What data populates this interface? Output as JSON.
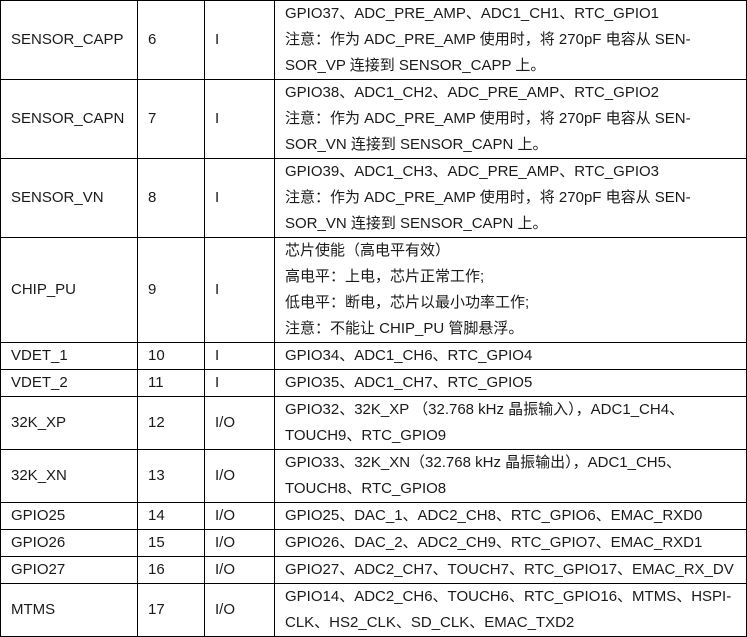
{
  "rows": [
    {
      "name": "SENSOR_CAPP",
      "no": "6",
      "type": "I",
      "desc": [
        "GPIO37、ADC_PRE_AMP、ADC1_CH1、RTC_GPIO1",
        "注意：作为 ADC_PRE_AMP 使用时，将 270pF 电容从 SEN-",
        "SOR_VP 连接到 SENSOR_CAPP 上。"
      ]
    },
    {
      "name": "SENSOR_CAPN",
      "no": "7",
      "type": "I",
      "desc": [
        "GPIO38、ADC1_CH2、ADC_PRE_AMP、RTC_GPIO2",
        "注意：作为 ADC_PRE_AMP 使用时，将 270pF 电容从 SEN-",
        "SOR_VN 连接到 SENSOR_CAPN 上。"
      ]
    },
    {
      "name": "SENSOR_VN",
      "no": "8",
      "type": "I",
      "desc": [
        "GPIO39、ADC1_CH3、ADC_PRE_AMP、RTC_GPIO3",
        "注意：作为 ADC_PRE_AMP 使用时，将 270pF 电容从 SEN-",
        "SOR_VN 连接到 SENSOR_CAPN 上。"
      ]
    },
    {
      "name": "CHIP_PU",
      "no": "9",
      "type": "I",
      "desc": [
        "芯片使能（高电平有效）",
        "高电平：上电，芯片正常工作;",
        "低电平：断电，芯片以最小功率工作;",
        "注意：不能让 CHIP_PU 管脚悬浮。"
      ]
    },
    {
      "name": "VDET_1",
      "no": "10",
      "type": "I",
      "desc": [
        "GPIO34、ADC1_CH6、RTC_GPIO4"
      ]
    },
    {
      "name": "VDET_2",
      "no": "11",
      "type": "I",
      "desc": [
        "GPIO35、ADC1_CH7、RTC_GPIO5"
      ]
    },
    {
      "name": "32K_XP",
      "no": "12",
      "type": "I/O",
      "desc": [
        "GPIO32、32K_XP （32.768 kHz 晶振输入），ADC1_CH4、",
        "TOUCH9、RTC_GPIO9"
      ]
    },
    {
      "name": "32K_XN",
      "no": "13",
      "type": "I/O",
      "desc": [
        "GPIO33、32K_XN（32.768 kHz 晶振输出），ADC1_CH5、",
        "TOUCH8、RTC_GPIO8"
      ]
    },
    {
      "name": "GPIO25",
      "no": "14",
      "type": "I/O",
      "desc": [
        "GPIO25、DAC_1、ADC2_CH8、RTC_GPIO6、EMAC_RXD0"
      ]
    },
    {
      "name": "GPIO26",
      "no": "15",
      "type": "I/O",
      "desc": [
        "GPIO26、DAC_2、ADC2_CH9、RTC_GPIO7、EMAC_RXD1"
      ]
    },
    {
      "name": "GPIO27",
      "no": "16",
      "type": "I/O",
      "desc": [
        "GPIO27、ADC2_CH7、TOUCH7、RTC_GPIO17、EMAC_RX_DV"
      ]
    },
    {
      "name": "MTMS",
      "no": "17",
      "type": "I/O",
      "desc": [
        "GPIO14、ADC2_CH6、TOUCH6、RTC_GPIO16、MTMS、HSPI-",
        "CLK、HS2_CLK、SD_CLK、EMAC_TXD2"
      ]
    }
  ]
}
